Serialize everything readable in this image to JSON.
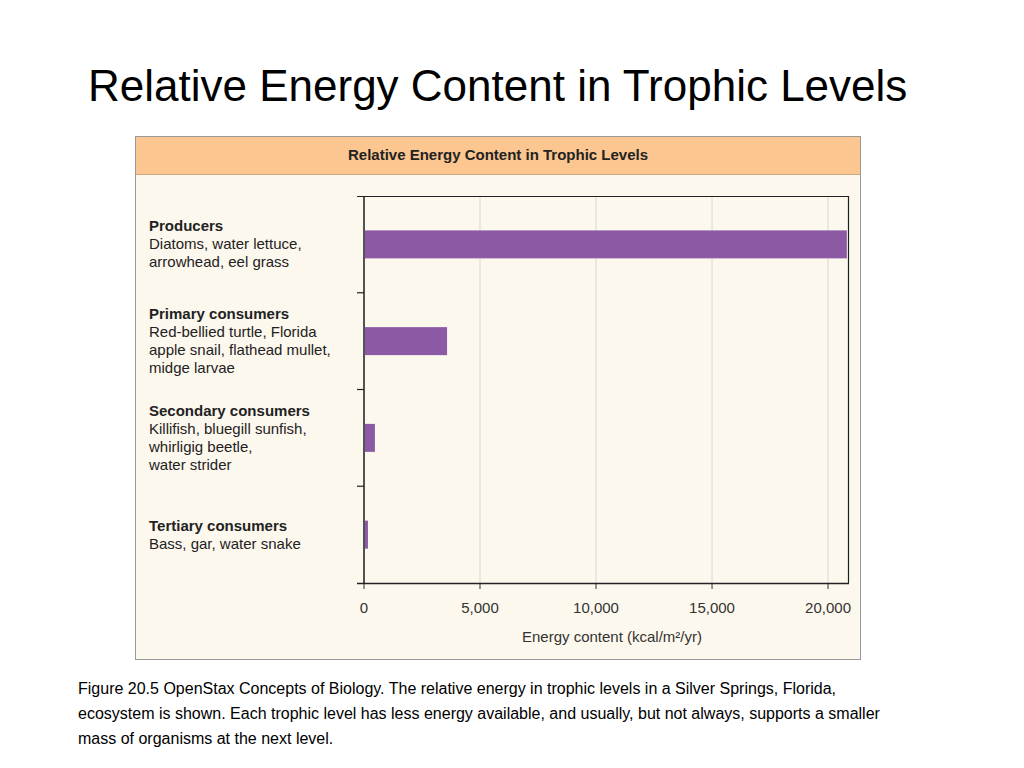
{
  "slide_title": "Relative Energy Content in Trophic Levels",
  "chart_data": {
    "type": "bar",
    "orientation": "horizontal",
    "title": "Relative Energy Content in Trophic Levels",
    "categories": [
      "Producers",
      "Primary consumers",
      "Secondary consumers",
      "Tertiary consumers"
    ],
    "category_descriptions": [
      [
        "Diatoms, water lettuce,",
        "arrowhead, eel grass"
      ],
      [
        "Red-bellied turtle, Florida",
        "apple snail, flathead mullet,",
        "midge larvae"
      ],
      [
        "Killifish, bluegill sunfish,",
        "whirligig beetle,",
        "water strider"
      ],
      [
        "Bass, gar, water snake"
      ]
    ],
    "values": [
      20810,
      3580,
      470,
      170
    ],
    "color": "#8c5aa5",
    "x_label": "Energy content (kcal/m²/yr)",
    "xlim": [
      0,
      20860
    ],
    "xticks": [
      0,
      {
        "value": 5000,
        "label": "5,000"
      },
      {
        "value": 10000,
        "label": "10,000"
      },
      {
        "value": 15000,
        "label": "15,000"
      },
      {
        "value": 20000,
        "label": "20,000"
      }
    ],
    "grid": true
  },
  "caption": [
    "Figure 20.5 OpenStax Concepts of Biology.  The relative energy in trophic levels in a Silver Springs, Florida,",
    "ecosystem is shown. Each trophic level has less energy available, and usually, but not always, supports a smaller",
    "mass of organisms at the next level."
  ]
}
